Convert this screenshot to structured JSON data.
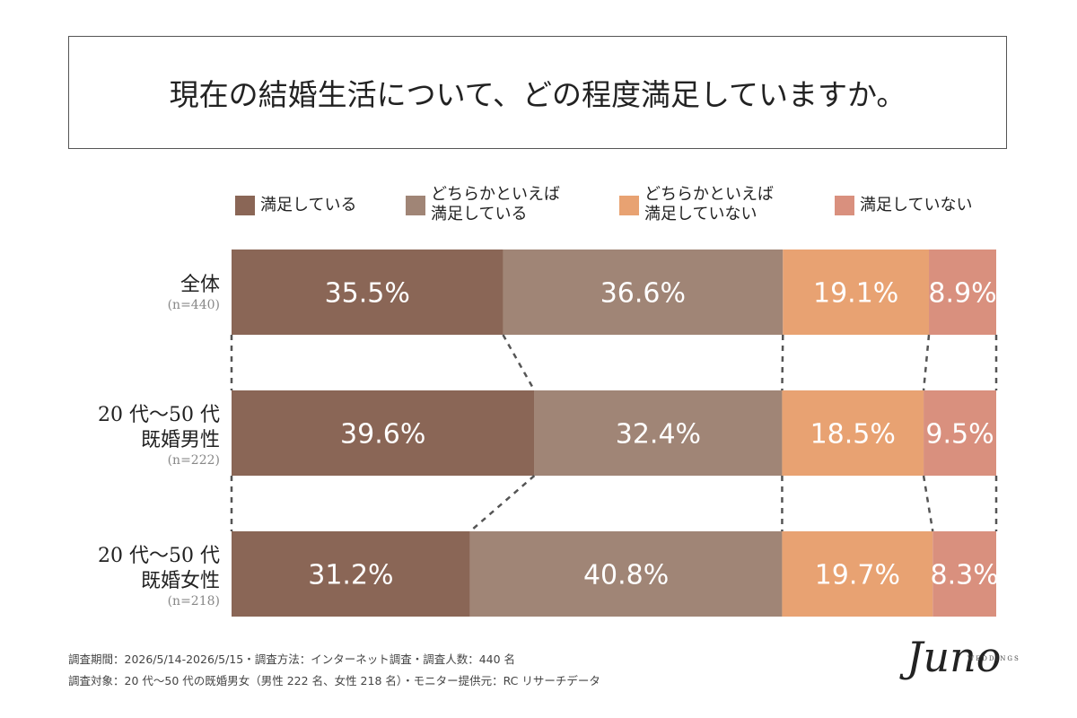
{
  "chart_data": {
    "type": "bar",
    "orientation": "horizontal",
    "stacked": true,
    "title": "現在の結婚生活について、どの程度満足していますか。",
    "categories": [
      "全体",
      "20 代〜50 代\n既婚男性",
      "20 代〜50 代\n既婚女性"
    ],
    "sample_sizes": [
      "(n=440)",
      "(n=222)",
      "(n=218)"
    ],
    "xlim": [
      0,
      100
    ],
    "series": [
      {
        "name": "満足している",
        "color": "#8a6656",
        "values": [
          35.5,
          39.6,
          31.2
        ],
        "value_labels": [
          "35.5%",
          "39.6%",
          "31.2%"
        ]
      },
      {
        "name": "どちらかといえば\n満足している",
        "color": "#a08576",
        "values": [
          36.6,
          32.4,
          40.8
        ],
        "value_labels": [
          "36.6%",
          "32.4%",
          "40.8%"
        ]
      },
      {
        "name": "どちらかといえば\n満足していない",
        "color": "#e8a272",
        "values": [
          19.1,
          18.5,
          19.7
        ],
        "value_labels": [
          "19.1%",
          "18.5%",
          "19.7%"
        ]
      },
      {
        "name": "満足していない",
        "color": "#d9907e",
        "values": [
          8.9,
          9.5,
          8.3
        ],
        "value_labels": [
          "8.9%",
          "9.5%",
          "8.3%"
        ]
      }
    ]
  },
  "footer": [
    "調査期間：2026/5/14-2026/5/15・調査方法：インターネット調査・調査人数：440 名",
    "調査対象：20 代〜50 代の既婚男女（男性 222 名、女性 218 名）・モニター提供元：RC リサーチデータ"
  ],
  "logo": {
    "name": "Juno",
    "tagline": "WEDDINGS"
  }
}
